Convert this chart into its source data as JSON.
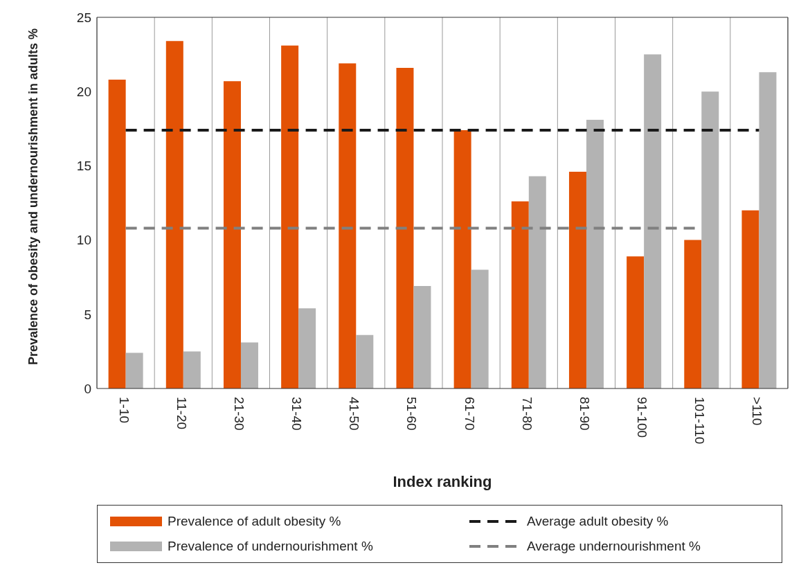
{
  "chart_data": {
    "type": "bar",
    "categories": [
      "1-10",
      "11-20",
      "21-30",
      "31-40",
      "41-50",
      "51-60",
      "61-70",
      "71-80",
      "81-90",
      "91-100",
      "101-110",
      ">110"
    ],
    "series": [
      {
        "name": "Prevalence of adult obesity %",
        "color": "#e35205",
        "values": [
          20.8,
          23.4,
          20.7,
          23.1,
          21.9,
          21.6,
          17.4,
          12.6,
          14.6,
          8.9,
          10.0,
          12.0
        ]
      },
      {
        "name": "Prevalence of undernourishment %",
        "color": "#b3b3b3",
        "values": [
          2.4,
          2.5,
          3.1,
          5.4,
          3.6,
          6.9,
          8.0,
          14.3,
          18.1,
          22.5,
          20.0,
          21.3
        ]
      },
      {
        "name": "Average adult obesity %",
        "type": "line",
        "color": "#1a1a1a",
        "values": [
          17.4,
          17.4,
          17.4,
          17.4,
          17.4,
          17.4,
          17.4,
          17.4,
          17.4,
          17.4,
          17.4,
          17.4
        ]
      },
      {
        "name": "Average undernourishment %",
        "type": "line",
        "color": "#808080",
        "values": [
          10.8,
          10.8,
          10.8,
          10.8,
          10.8,
          10.8,
          10.8,
          10.8,
          10.8,
          10.8,
          10.8,
          null
        ]
      }
    ],
    "ylim": [
      0,
      25
    ],
    "yticks": [
      0,
      5,
      10,
      15,
      20,
      25
    ],
    "xlabel": "Index ranking",
    "ylabel": "Prevalence of obesity and undernourishment in adults %",
    "grid": "x",
    "legend": "bottom",
    "line_style": "dashed"
  }
}
